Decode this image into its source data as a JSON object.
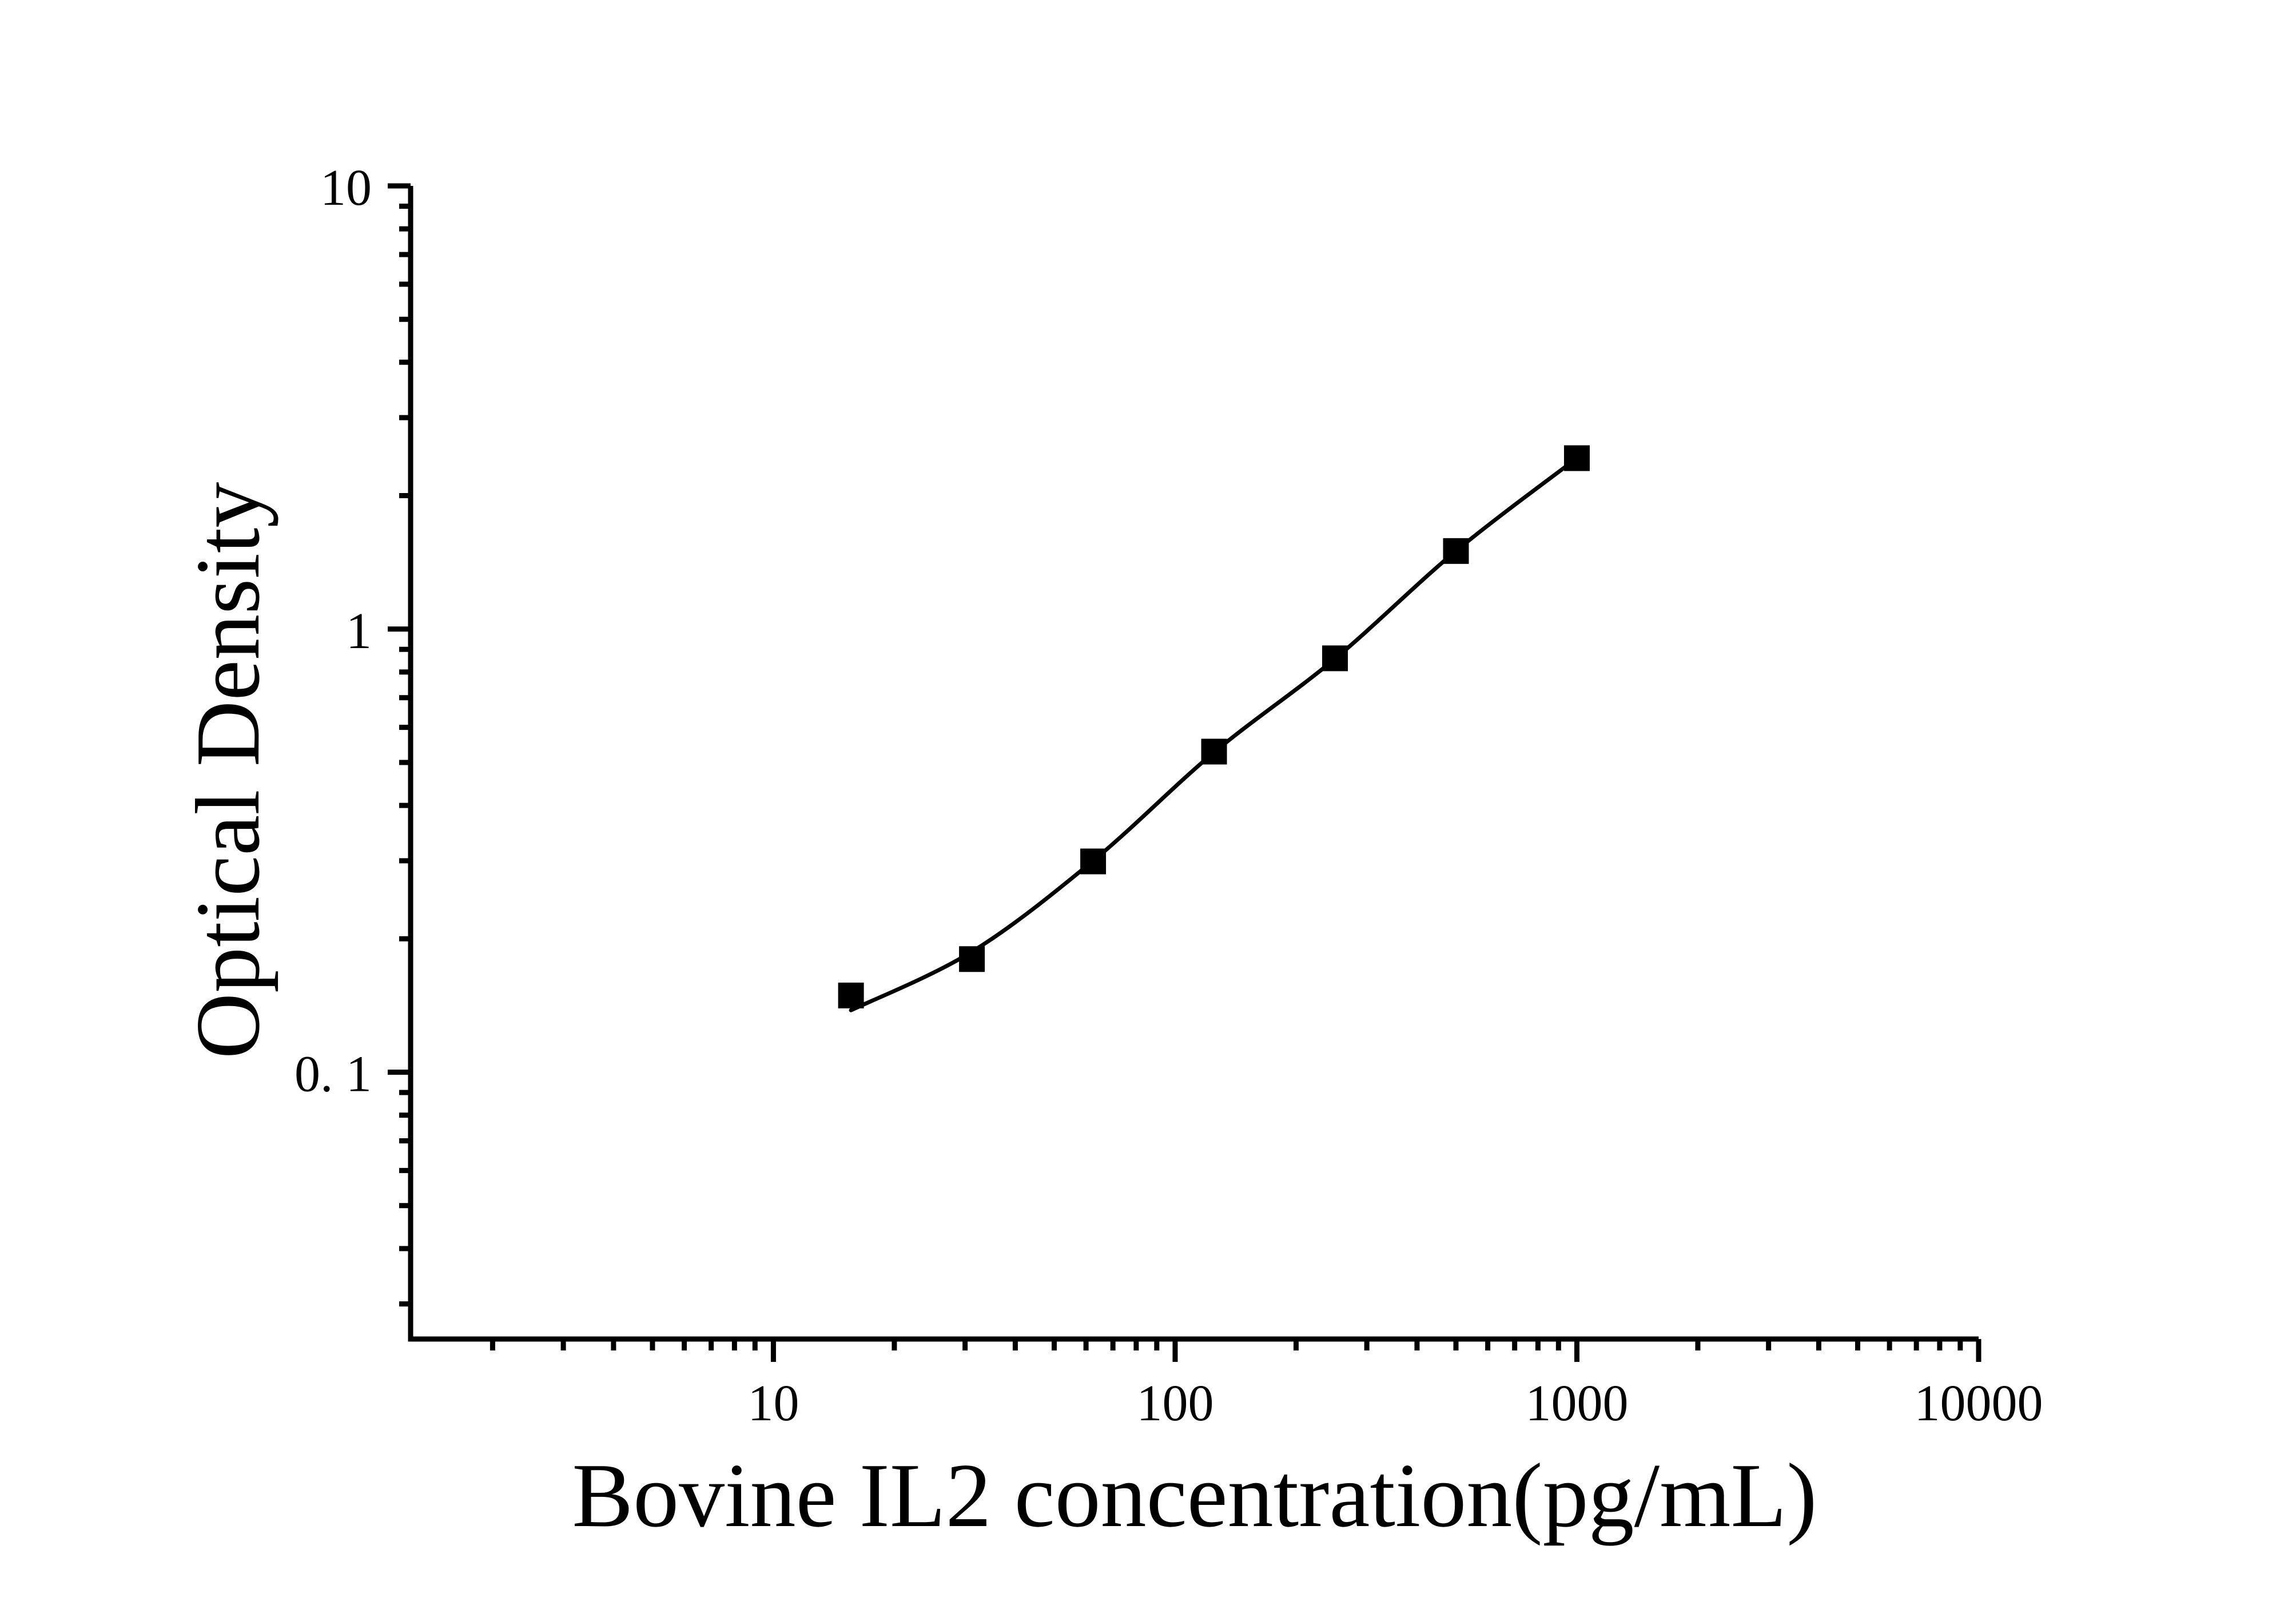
{
  "figure": {
    "background_color": "#ffffff",
    "ink_color": "#000000"
  },
  "chart_data": {
    "type": "scatter",
    "title": "",
    "xlabel": "Bovine IL2 concentration(pg/mL)",
    "ylabel": "Optical Density",
    "x_scale": "log",
    "y_scale": "log",
    "xlim": [
      1.25,
      10000
    ],
    "ylim": [
      0.025,
      10
    ],
    "grid": false,
    "legend": "none",
    "x_major_ticks": [
      {
        "value": 10,
        "label": "10"
      },
      {
        "value": 100,
        "label": "100"
      },
      {
        "value": 1000,
        "label": "1000"
      },
      {
        "value": 10000,
        "label": "10000"
      }
    ],
    "y_major_ticks": [
      {
        "value": 10,
        "label": "10"
      },
      {
        "value": 1,
        "label": "1"
      },
      {
        "value": 0.1,
        "label": "0. 1"
      }
    ],
    "minor_tick_pattern": "log-decade multiples 2-9 on both axes",
    "series": [
      {
        "name": "standard-points",
        "type": "scatter",
        "marker": "filled-square",
        "color": "#000000",
        "x": [
          15.6,
          31.2,
          62.5,
          125,
          250,
          500,
          1000
        ],
        "y": [
          0.149,
          0.18,
          0.299,
          0.529,
          0.859,
          1.5,
          2.43
        ]
      },
      {
        "name": "fit-curve",
        "type": "line",
        "color": "#000000",
        "x": [
          15.6,
          31.2,
          62.5,
          125,
          250,
          500,
          1000
        ],
        "y": [
          0.138,
          0.187,
          0.3,
          0.527,
          0.857,
          1.5,
          2.43
        ]
      }
    ]
  }
}
